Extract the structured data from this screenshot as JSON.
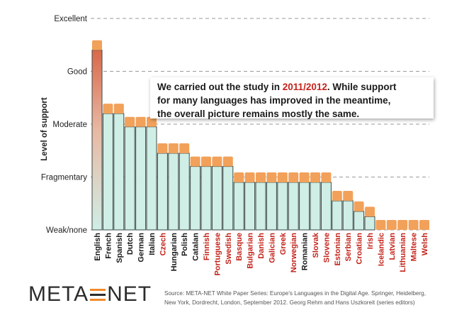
{
  "chart_data": {
    "type": "bar",
    "ylabel": "Level of support",
    "levels": [
      "Weak/none",
      "Fragmentary",
      "Moderate",
      "Good",
      "Excellent"
    ],
    "categories": [
      "English",
      "French",
      "Spanish",
      "Dutch",
      "German",
      "Italian",
      "Czech",
      "Hungarian",
      "Polish",
      "Catalan",
      "Finnish",
      "Portuguese",
      "Swedish",
      "Basque",
      "Bulgarian",
      "Danish",
      "Galician",
      "Greek",
      "Norwegian",
      "Romanian",
      "Slovak",
      "Slovene",
      "Estonian",
      "Serbian",
      "Croatian",
      "Irish",
      "Icelandic",
      "Latvian",
      "Lithuanian",
      "Maltese",
      "Welsh"
    ],
    "values": [
      3.4,
      2.2,
      2.2,
      1.95,
      1.95,
      1.95,
      1.45,
      1.45,
      1.45,
      1.2,
      1.2,
      1.2,
      1.2,
      0.9,
      0.9,
      0.9,
      0.9,
      0.9,
      0.9,
      0.9,
      0.9,
      0.9,
      0.55,
      0.55,
      0.35,
      0.25,
      0.0,
      0.0,
      0.0,
      0.0,
      0.0
    ],
    "highlighted": [
      "Czech",
      "Finnish",
      "Portuguese",
      "Swedish",
      "Basque",
      "Bulgarian",
      "Danish",
      "Galician",
      "Greek",
      "Norwegian",
      "Slovak",
      "Slovene",
      "Estonian",
      "Serbian",
      "Croatian",
      "Irish",
      "Icelandic",
      "Latvian",
      "Lithuanian",
      "Maltese",
      "Welsh"
    ],
    "ylim": [
      0,
      4
    ],
    "grid": true
  },
  "annotation": {
    "before": "We carried out the study in ",
    "highlight": "2011/2012",
    "after_1": ". While support",
    "line_2": "for many languages has improved in the meantime,",
    "line_3": "the overall picture remains mostly the same."
  },
  "logo": {
    "left": "META",
    "right": "NET"
  },
  "source": "Source: META-NET White Paper Series: Europe's Languages in the Digital Age. Springer, Heidelberg, New York, Dordrecht, London, September 2012. Georg Rehm and Hans Uszkoreit (series editors)",
  "colors": {
    "cap": "#f2a15a",
    "bar_top_english": "#d96b4a",
    "bar_fill": "#cfeee6",
    "bar_stroke": "#3d4a47",
    "highlight_label": "#c4231a",
    "logo_eq_orange": "#f08a2e"
  }
}
